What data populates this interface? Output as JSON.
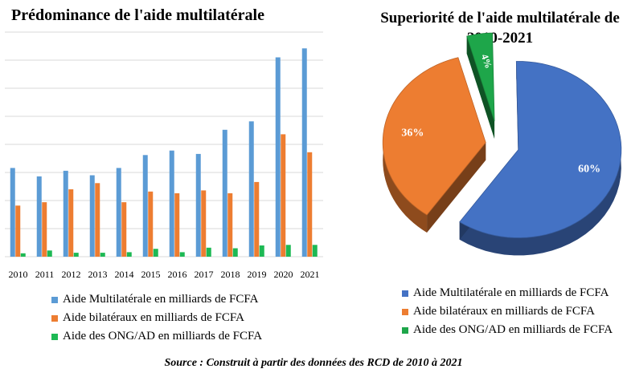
{
  "chart_data": [
    {
      "type": "bar",
      "title": "Prédominance de l'aide multilatérale",
      "categories": [
        "2010",
        "2011",
        "2012",
        "2013",
        "2014",
        "2015",
        "2016",
        "2017",
        "2018",
        "2019",
        "2020",
        "2021"
      ],
      "series": [
        {
          "name": "Aide Multilatérale en milliards de FCFA",
          "color": "#5b9bd5",
          "values": [
            316,
            286,
            306,
            290,
            316,
            362,
            378,
            366,
            452,
            482,
            710,
            742
          ]
        },
        {
          "name": "Aide bilatéraux en milliards de FCFA",
          "color": "#ed7d31",
          "values": [
            182,
            194,
            240,
            262,
            194,
            232,
            226,
            236,
            226,
            266,
            436,
            372
          ]
        },
        {
          "name": "Aide des ONG/AD en milliards de FCFA",
          "color": "#1db954",
          "values": [
            12,
            22,
            14,
            14,
            16,
            28,
            16,
            32,
            30,
            40,
            42,
            42
          ]
        }
      ],
      "ylim": [
        0,
        800
      ],
      "grid": true,
      "legend": "bottom"
    },
    {
      "type": "pie",
      "title": "Superiorité de l'aide multilatérale de 2010-2021",
      "labels": [
        "Aide Multilatérale en milliards de FCFA",
        "Aide bilatéraux en milliards de FCFA",
        "Aide des ONG/AD en milliards de FCFA"
      ],
      "values": [
        60,
        36,
        4
      ],
      "value_labels": [
        "60%",
        "36%",
        "4%"
      ],
      "colors": [
        "#4472c4",
        "#ed7d31",
        "#1ea64a"
      ],
      "legend": "bottom"
    }
  ],
  "source": "Source : Construit à partir des données des RCD de 2010 à 2021"
}
